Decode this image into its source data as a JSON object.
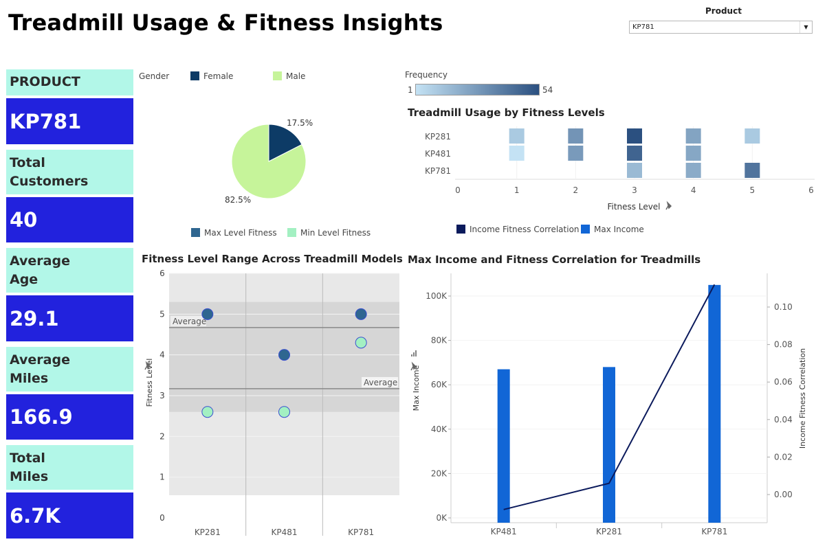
{
  "page": {
    "title": "Treadmill Usage & Fitness Insights",
    "filter": {
      "label": "Product",
      "value": "KP781"
    }
  },
  "kpis": [
    {
      "label": "PRODUCT",
      "value": "KP781"
    },
    {
      "label": "Total\nCustomers",
      "value": "40"
    },
    {
      "label": "Average\nAge",
      "value": "29.1"
    },
    {
      "label": "Average\nMiles",
      "value": "166.9"
    },
    {
      "label": "Total\nMiles",
      "value": "6.7K"
    }
  ],
  "gender_legend": {
    "title": "Gender",
    "items": [
      {
        "label": "Female",
        "color": "#0d3b66"
      },
      {
        "label": "Male",
        "color": "#c6f49a"
      }
    ]
  },
  "frequency_legend": {
    "title": "Frequency",
    "min": "1",
    "max": "54"
  },
  "range_legend": {
    "items": [
      {
        "label": "Max Level Fitness",
        "color": "#2f6690"
      },
      {
        "label": "Min Level Fitness",
        "color": "#a3f0c2"
      }
    ]
  },
  "income_legend": {
    "items": [
      {
        "label": "Income Fitness Correlation",
        "color": "#0b1a5c"
      },
      {
        "label": "Max Income",
        "color": "#1166d6"
      }
    ]
  },
  "chart_data": [
    {
      "type": "pie",
      "categories": [
        "Female",
        "Male"
      ],
      "values": [
        17.5,
        82.5
      ],
      "labels": [
        "17.5%",
        "82.5%"
      ],
      "colors": [
        "#0d3b66",
        "#c6f49a"
      ]
    },
    {
      "type": "heatmap",
      "title": "Treadmill Usage by Fitness Levels",
      "xlabel": "Fitness Level",
      "xticks": [
        "0",
        "1",
        "2",
        "3",
        "4",
        "5",
        "6"
      ],
      "xlim": [
        0,
        6
      ],
      "rows": [
        "KP281",
        "KP481",
        "KP781"
      ],
      "x": [
        1,
        2,
        3,
        4,
        5
      ],
      "values": [
        [
          2,
          14,
          54,
          9,
          2
        ],
        [
          1,
          12,
          39,
          8,
          null
        ],
        [
          null,
          null,
          4,
          7,
          29
        ]
      ]
    },
    {
      "type": "scatter",
      "title": "Fitness Level Range Across Treadmill Models",
      "ylabel": "Fitness Level",
      "categories": [
        "KP281",
        "KP481",
        "KP781"
      ],
      "ylim": [
        0,
        6
      ],
      "yticks": [
        "0",
        "1",
        "2",
        "3",
        "4",
        "5",
        "6"
      ],
      "series": [
        {
          "name": "Max Level Fitness",
          "values": [
            5,
            4,
            5
          ]
        },
        {
          "name": "Min Level Fitness",
          "values": [
            2.6,
            2.6,
            4.3
          ]
        }
      ],
      "reference_lines": [
        {
          "label": "Average",
          "value": 4.67
        },
        {
          "label": "Average",
          "value": 3.17
        }
      ]
    },
    {
      "type": "bar",
      "title": "Max Income and Fitness Correlation for Treadmills",
      "categories": [
        "KP481",
        "KP281",
        "KP781"
      ],
      "ylabel": "Max Income",
      "ylim": [
        0,
        105000
      ],
      "yticks": [
        "0K",
        "20K",
        "40K",
        "60K",
        "80K",
        "100K"
      ],
      "y2label": "Income Fitness Correlation",
      "y2lim": [
        -0.0115,
        0.115
      ],
      "y2ticks": [
        "0.00",
        "0.02",
        "0.04",
        "0.06",
        "0.08",
        "0.10"
      ],
      "series": [
        {
          "name": "Max Income",
          "kind": "bar",
          "values": [
            67000,
            68000,
            105000
          ]
        },
        {
          "name": "Income Fitness Correlation",
          "kind": "line",
          "values": [
            -0.008,
            0.006,
            0.112
          ]
        }
      ]
    }
  ]
}
